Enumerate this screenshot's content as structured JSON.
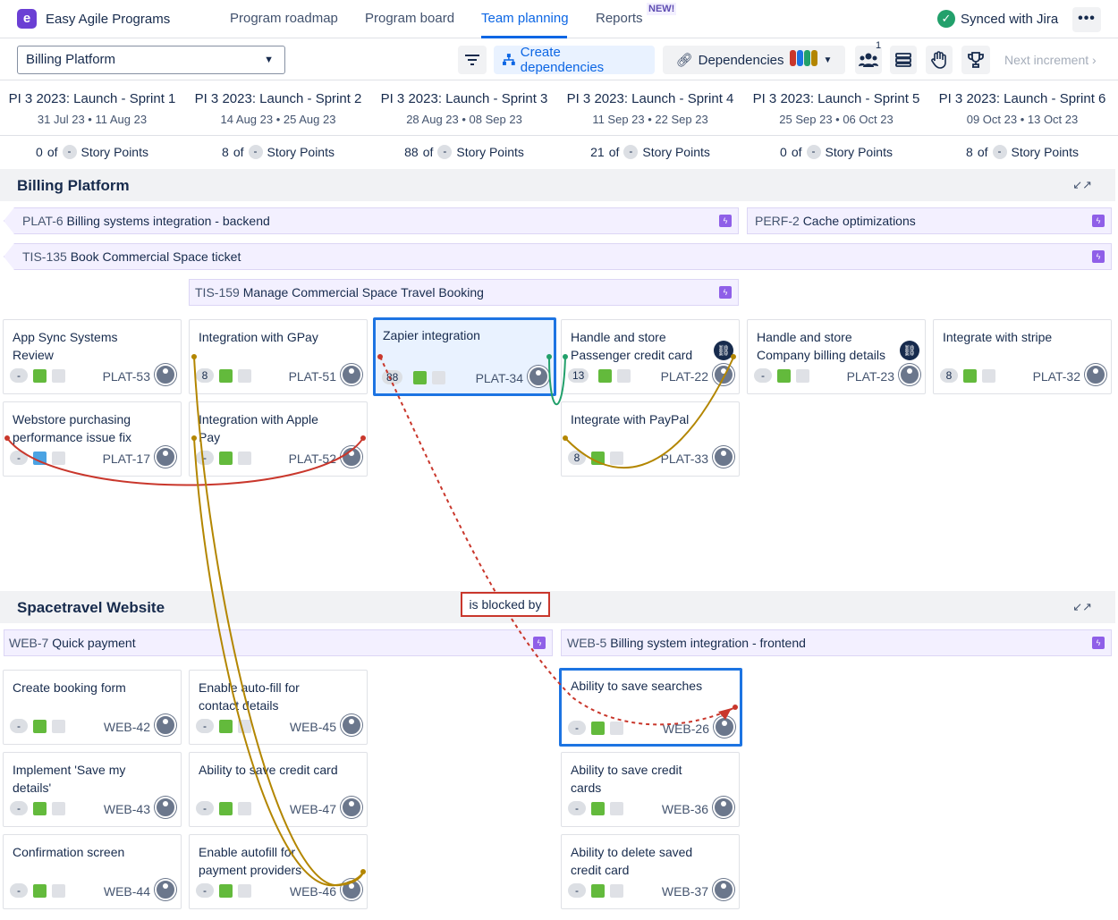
{
  "app": {
    "name": "Easy Agile Programs",
    "logo_letter": "e"
  },
  "nav": {
    "tabs": [
      "Program roadmap",
      "Program board",
      "Team planning",
      "Reports"
    ],
    "active": "Team planning",
    "new_badge": "NEW!",
    "sync_status": "Synced with Jira",
    "more_label": "•••"
  },
  "toolbar": {
    "team_select": "Billing Platform",
    "create_dependencies": "Create dependencies",
    "dependencies": "Dependencies",
    "dependency_colors": [
      "#c9372c",
      "#1d74e2",
      "#22a06b",
      "#b38600"
    ],
    "team_count": "1",
    "next_increment": "Next increment"
  },
  "sprints": [
    {
      "name": "PI 3 2023: Launch - Sprint 1",
      "dates": "31 Jul 23 • 11 Aug 23",
      "points": "0"
    },
    {
      "name": "PI 3 2023: Launch - Sprint 2",
      "dates": "14 Aug 23 • 25 Aug 23",
      "points": "8"
    },
    {
      "name": "PI 3 2023: Launch - Sprint 3",
      "dates": "28 Aug 23 • 08 Sep 23",
      "points": "88"
    },
    {
      "name": "PI 3 2023: Launch - Sprint 4",
      "dates": "11 Sep 23 • 22 Sep 23",
      "points": "21"
    },
    {
      "name": "PI 3 2023: Launch - Sprint 5",
      "dates": "25 Sep 23 • 06 Oct 23",
      "points": "0"
    },
    {
      "name": "PI 3 2023: Launch - Sprint 6",
      "dates": "09 Oct 23 • 13 Oct 23",
      "points": "8"
    }
  ],
  "points_labels": {
    "of": "of",
    "dash": "-",
    "unit": "Story Points"
  },
  "groups": {
    "billing": {
      "title": "Billing Platform",
      "features": [
        {
          "key": "PLAT-6",
          "title": "Billing systems integration - backend"
        },
        {
          "key": "PERF-2",
          "title": "Cache optimizations"
        },
        {
          "key": "TIS-135",
          "title": "Book Commercial Space ticket"
        },
        {
          "key": "TIS-159",
          "title": "Manage Commercial Space Travel Booking"
        }
      ],
      "cards": [
        {
          "title": "App Sync Systems Review",
          "est": "-",
          "key": "PLAT-53"
        },
        {
          "title": "Integration with GPay",
          "est": "8",
          "key": "PLAT-51"
        },
        {
          "title": "Zapier integration",
          "est": "88",
          "key": "PLAT-34"
        },
        {
          "title": "Handle and store Passenger credit card",
          "est": "13",
          "key": "PLAT-22"
        },
        {
          "title": "Handle and store Company billing details",
          "est": "-",
          "key": "PLAT-23"
        },
        {
          "title": "Integrate with stripe",
          "est": "8",
          "key": "PLAT-32"
        },
        {
          "title": "Webstore purchasing performance issue fix",
          "est": "-",
          "key": "PLAT-17"
        },
        {
          "title": "Integration with Apple Pay",
          "est": "-",
          "key": "PLAT-52"
        },
        {
          "title": "Integrate with PayPal",
          "est": "8",
          "key": "PLAT-33"
        }
      ]
    },
    "web": {
      "title": "Spacetravel Website",
      "features": [
        {
          "key": "WEB-7",
          "title": "Quick payment"
        },
        {
          "key": "WEB-5",
          "title": "Billing system integration - frontend"
        }
      ],
      "cards": [
        {
          "title": "Create booking form",
          "est": "-",
          "key": "WEB-42"
        },
        {
          "title": "Enable auto-fill for contact details",
          "est": "-",
          "key": "WEB-45"
        },
        {
          "title": "Ability to save searches",
          "est": "-",
          "key": "WEB-26"
        },
        {
          "title": "Implement 'Save my details'",
          "est": "-",
          "key": "WEB-43"
        },
        {
          "title": "Ability to save credit card",
          "est": "-",
          "key": "WEB-47"
        },
        {
          "title": "Ability to save credit cards",
          "est": "-",
          "key": "WEB-36"
        },
        {
          "title": "Confirmation screen",
          "est": "-",
          "key": "WEB-44"
        },
        {
          "title": "Enable autofill for payment providers",
          "est": "-",
          "key": "WEB-46"
        },
        {
          "title": "Ability to delete saved credit card",
          "est": "-",
          "key": "WEB-37"
        }
      ]
    }
  },
  "dependency_label": "is blocked by"
}
